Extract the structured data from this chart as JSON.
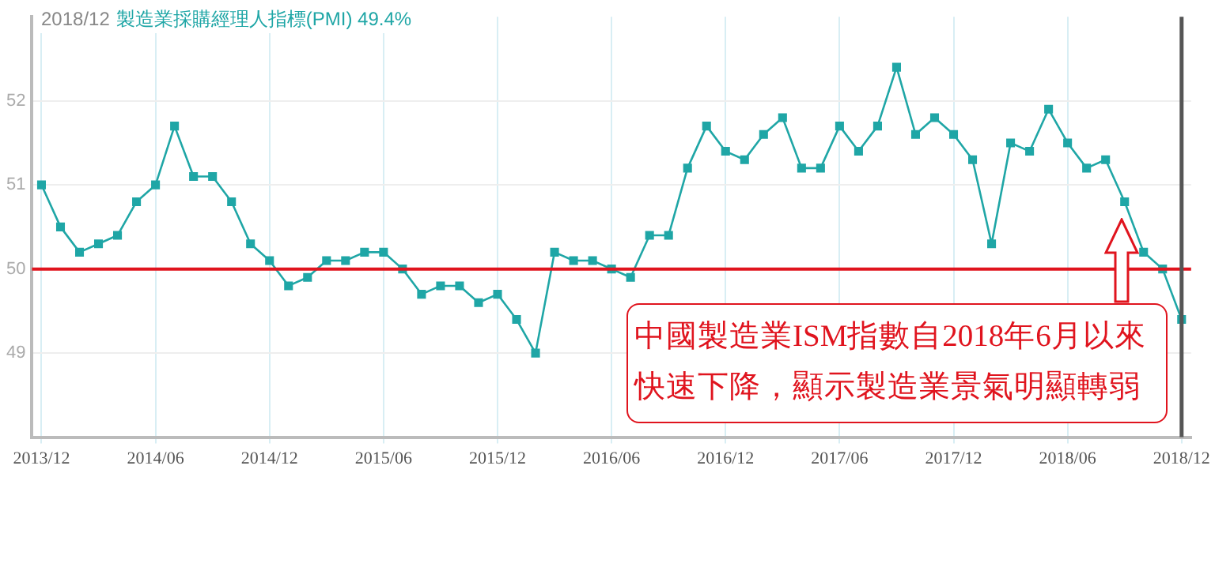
{
  "chart_data": {
    "type": "line",
    "title": "2018/12",
    "subtitle": "製造業採購經理人指標(PMI) 49.4%",
    "categories": [
      "2013/12",
      null,
      null,
      null,
      null,
      null,
      "2014/06",
      null,
      null,
      null,
      null,
      null,
      "2014/12",
      null,
      null,
      null,
      null,
      null,
      "2015/06",
      null,
      null,
      null,
      null,
      null,
      "2015/12",
      null,
      null,
      null,
      null,
      null,
      "2016/06",
      null,
      null,
      null,
      null,
      null,
      "2016/12",
      null,
      null,
      null,
      null,
      null,
      "2017/06",
      null,
      null,
      null,
      null,
      null,
      "2017/12",
      null,
      null,
      null,
      null,
      null,
      "2018/06",
      null,
      null,
      null,
      null,
      null,
      "2018/12"
    ],
    "series": [
      {
        "color": "#1fa6a6",
        "values": [
          51.0,
          50.5,
          50.2,
          50.3,
          50.4,
          50.8,
          51.0,
          51.7,
          51.1,
          51.1,
          50.8,
          50.3,
          50.1,
          49.8,
          49.9,
          50.1,
          50.1,
          50.2,
          50.2,
          50.0,
          49.7,
          49.8,
          49.8,
          49.6,
          49.7,
          49.4,
          49.0,
          50.2,
          50.1,
          50.1,
          50.0,
          49.9,
          50.4,
          50.4,
          51.2,
          51.7,
          51.4,
          51.3,
          51.6,
          51.8,
          51.2,
          51.2,
          51.7,
          51.4,
          51.7,
          52.4,
          51.6,
          51.8,
          51.6,
          51.3,
          50.3,
          51.5,
          51.4,
          51.9,
          51.5,
          51.2,
          51.3,
          50.8,
          50.2,
          50.0,
          49.4
        ]
      }
    ],
    "ylim": [
      48,
      53
    ],
    "yticks": [
      49,
      50,
      51,
      52
    ],
    "grid": true,
    "legend": false,
    "marker": "square",
    "line_style": "solid",
    "ref_lines": [
      {
        "axis": "y",
        "value": 50,
        "color": "#e0141e"
      },
      {
        "axis": "x",
        "value": "2018/12",
        "color": "#555555"
      }
    ],
    "annotations": [
      "中國製造業ISM指數自2018年6月以來快速下降，顯示製造業景氣明顯轉弱"
    ]
  }
}
